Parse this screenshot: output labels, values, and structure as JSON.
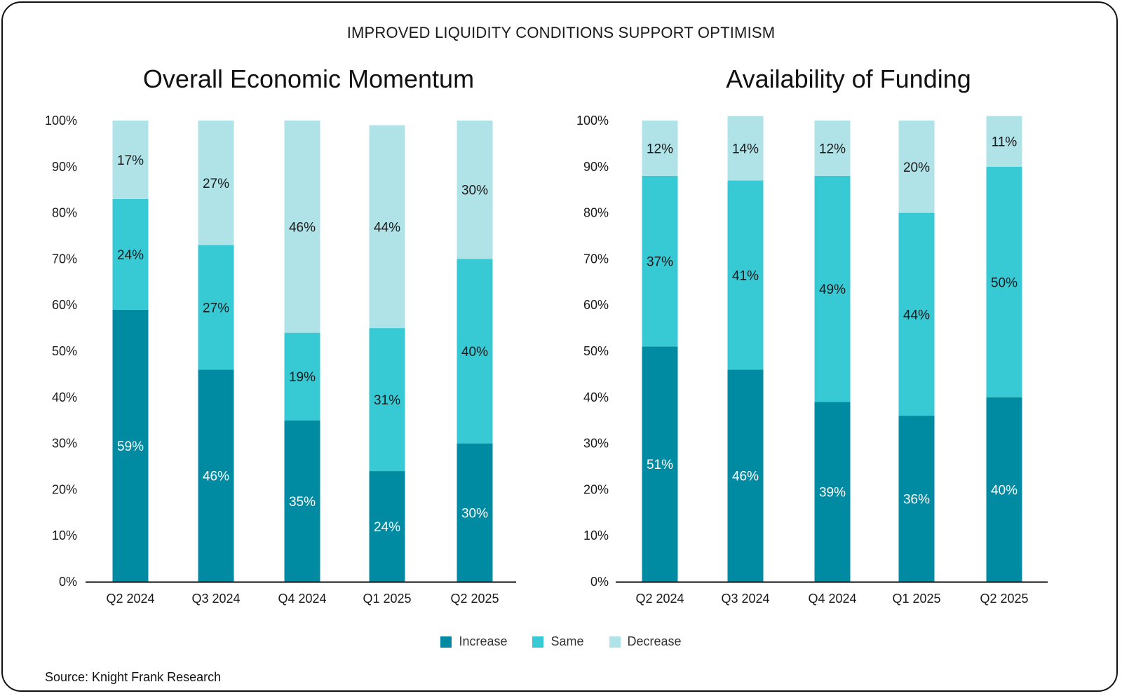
{
  "title": "IMPROVED LIQUIDITY CONDITIONS SUPPORT OPTIMISM",
  "source": "Source: Knight Frank Research",
  "colors": {
    "increase": "#008ba3",
    "same": "#37cad5",
    "decrease": "#b0e3e8"
  },
  "legend": [
    {
      "label": "Increase",
      "key": "increase"
    },
    {
      "label": "Same",
      "key": "same"
    },
    {
      "label": "Decrease",
      "key": "decrease"
    }
  ],
  "chart_data": [
    {
      "type": "bar",
      "stacked": true,
      "title": "Overall Economic Momentum",
      "categories": [
        "Q2 2024",
        "Q3 2024",
        "Q4 2024",
        "Q1 2025",
        "Q2 2025"
      ],
      "ylim": [
        0,
        100
      ],
      "yticks": [
        "0%",
        "10%",
        "20%",
        "30%",
        "40%",
        "50%",
        "60%",
        "70%",
        "80%",
        "90%",
        "100%"
      ],
      "series": [
        {
          "name": "Increase",
          "values": [
            59,
            46,
            35,
            24,
            30
          ],
          "labels": [
            "59%",
            "46%",
            "35%",
            "24%",
            "30%"
          ]
        },
        {
          "name": "Same",
          "values": [
            24,
            27,
            19,
            31,
            40
          ],
          "labels": [
            "24%",
            "27%",
            "19%",
            "31%",
            "40%"
          ]
        },
        {
          "name": "Decrease",
          "values": [
            17,
            27,
            46,
            44,
            30
          ],
          "labels": [
            "17%",
            "27%",
            "46%",
            "44%",
            "30%"
          ]
        }
      ]
    },
    {
      "type": "bar",
      "stacked": true,
      "title": "Availability of Funding",
      "categories": [
        "Q2 2024",
        "Q3 2024",
        "Q4 2024",
        "Q1 2025",
        "Q2 2025"
      ],
      "ylim": [
        0,
        100
      ],
      "yticks": [
        "0%",
        "10%",
        "20%",
        "30%",
        "40%",
        "50%",
        "60%",
        "70%",
        "80%",
        "90%",
        "100%"
      ],
      "series": [
        {
          "name": "Increase",
          "values": [
            51,
            46,
            39,
            36,
            40
          ],
          "labels": [
            "51%",
            "46%",
            "39%",
            "36%",
            "40%"
          ]
        },
        {
          "name": "Same",
          "values": [
            37,
            41,
            49,
            44,
            50
          ],
          "labels": [
            "37%",
            "41%",
            "49%",
            "44%",
            "50%"
          ]
        },
        {
          "name": "Decrease",
          "values": [
            12,
            14,
            12,
            20,
            11
          ],
          "labels": [
            "12%",
            "14%",
            "12%",
            "20%",
            "11%"
          ]
        }
      ]
    }
  ]
}
